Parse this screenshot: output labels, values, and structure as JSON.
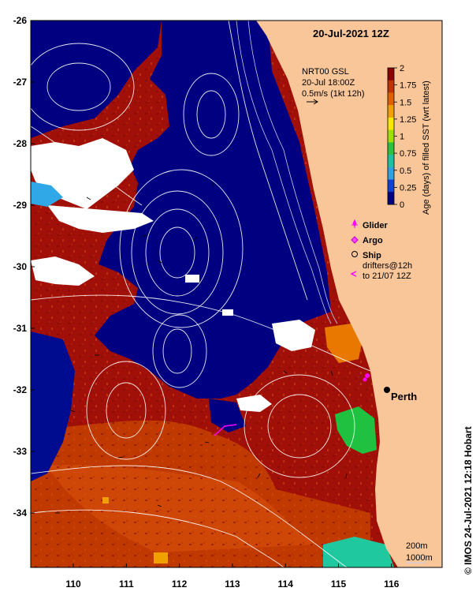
{
  "map": {
    "title": "20-Jul-2021 12Z",
    "credit": "© IMOS 24-Jul-2021 12:18 Hobart",
    "city": "Perth",
    "lat_ticks": [
      "-26",
      "-27",
      "-28",
      "-29",
      "-30",
      "-31",
      "-32",
      "-33",
      "-34"
    ],
    "lon_ticks": [
      "110",
      "111",
      "112",
      "113",
      "114",
      "115",
      "116"
    ],
    "current_block": {
      "line1": "NRT00 GSL",
      "line2": "20-Jul 18:00Z",
      "line3": "0.5m/s (1kt 12h)"
    },
    "colorbar": {
      "title": "Age (days) of filled SST (wrt latest)",
      "ticks": [
        "2",
        "1.75",
        "1.5",
        "1.25",
        "1",
        "0.75",
        "0.5",
        "0.25",
        "0"
      ],
      "colors": [
        "#8b0000",
        "#c03000",
        "#e06000",
        "#f0a000",
        "#f8e800",
        "#a0e000",
        "#30c040",
        "#20c0a0",
        "#30a0e0",
        "#1040d0",
        "#000080"
      ]
    },
    "legend": {
      "glider": "Glider",
      "argo": "Argo",
      "ship": "Ship",
      "drifters_line1": "drifters@12h",
      "drifters_line2": "to 21/07 12Z"
    },
    "depth_legend": {
      "shallow": "200m",
      "deep": "1000m"
    },
    "colors": {
      "land": "#f9c69a",
      "warm_old": "#a01008",
      "warm_mid": "#c03a00",
      "fresh": "#000080",
      "cloud": "#ffffff",
      "contour": "#ffffff",
      "glider": "#ff00ff"
    }
  }
}
